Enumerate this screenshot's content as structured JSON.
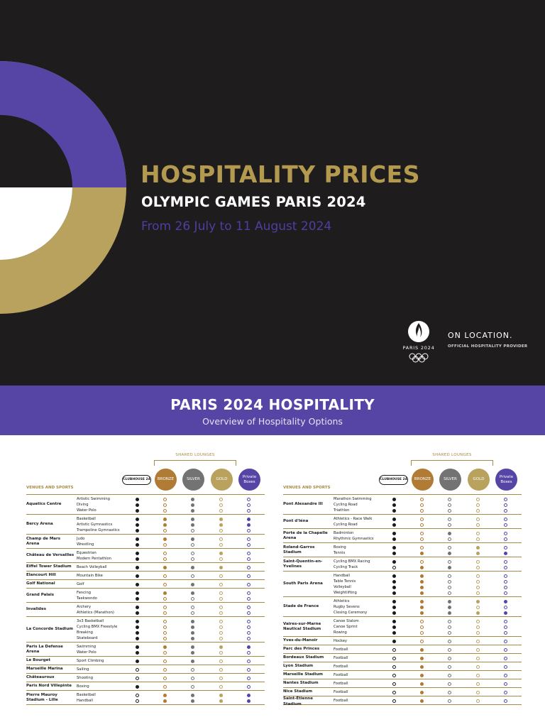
{
  "hero": {
    "title": "HOSPITALITY PRICES",
    "subtitle": "OLYMPIC GAMES PARIS 2024",
    "dates": "From 26 July to 11 August 2024",
    "logo_label": "PARIS 2024",
    "provider_name": "ON LOCATION.",
    "provider_tagline": "OFFICIAL HOSPITALITY PROVIDER"
  },
  "band": {
    "title": "PARIS 2024 HOSPITALITY",
    "subtitle": "Overview of Hospitality Options"
  },
  "table_header": {
    "shared_lounges": "SHARED LOUNGES",
    "venues_and_sports": "VENUES AND SPORTS",
    "clubhouse": "CLUBHOUSE 24",
    "bronze": "BRONZE",
    "silver": "SILVER",
    "gold": "GOLD",
    "private_boxes": "Private Boxes"
  },
  "colors": {
    "black": "#1c1a1b",
    "bronze": "#b07b35",
    "silver": "#737374",
    "gold": "#b8a25e",
    "purple": "#5745a6",
    "rule": "#a58b46"
  },
  "legend_codes": {
    "K": "black filled dot",
    "k": "black outline dot",
    "B": "bronze filled dot",
    "b": "bronze outline dot",
    "S": "silver filled dot",
    "s": "silver outline dot",
    "G": "gold filled dot",
    "g": "gold outline dot",
    "P": "purple filled dot",
    "p": "purple outline dot"
  },
  "left_rows": [
    {
      "venue": "Aquatics Centre",
      "lines": [
        [
          "Artistic Swimming",
          "KbSgp"
        ],
        [
          "Diving",
          "KbSgp"
        ],
        [
          "Water Polo",
          "KbSgp"
        ]
      ]
    },
    {
      "venue": "Bercy Arena",
      "lines": [
        [
          "Basketball",
          "KBSGP"
        ],
        [
          "Artistic Gymnastics",
          "KBSGP"
        ],
        [
          "Trampoline Gymnastics",
          "Kbsgp"
        ]
      ]
    },
    {
      "venue": "Champ de Mars Arena",
      "lines": [
        [
          "Judo",
          "KBSgp"
        ],
        [
          "Wrestling",
          "Kbsgp"
        ]
      ]
    },
    {
      "venue": "Château de Versailles",
      "lines": [
        [
          "Equestrian",
          "KbsGp"
        ],
        [
          "Modern Pentathlon",
          "Kbsgp"
        ]
      ]
    },
    {
      "venue": "Eiffel Tower Stadium",
      "lines": [
        [
          "Beach Volleyball",
          "KBSGp"
        ]
      ]
    },
    {
      "venue": "Elancourt Hill",
      "lines": [
        [
          "Mountain Bike",
          "Kbsgp"
        ]
      ]
    },
    {
      "venue": "Golf National",
      "lines": [
        [
          "Golf",
          "KbSgp"
        ]
      ]
    },
    {
      "venue": "Grand Palais",
      "lines": [
        [
          "Fencing",
          "KBSgp"
        ],
        [
          "Taekwondo",
          "Kbsgp"
        ]
      ]
    },
    {
      "venue": "Invalides",
      "lines": [
        [
          "Archery",
          "Kbsgp"
        ],
        [
          "Athletics (Marathon)",
          "Kbsgp"
        ]
      ]
    },
    {
      "venue": "La Concorde Stadium",
      "lines": [
        [
          "3x3 Basketball",
          "KbSgp"
        ],
        [
          "Cycling BMX Freestyle",
          "KbSgp"
        ],
        [
          "Breaking",
          "KbSgp"
        ],
        [
          "Skateboard",
          "KbSgp"
        ]
      ]
    },
    {
      "venue": "Paris La Defense Arena",
      "lines": [
        [
          "Swimming",
          "KBSGP"
        ],
        [
          "Water Polo",
          "KbSgp"
        ]
      ]
    },
    {
      "venue": "Le Bourget",
      "lines": [
        [
          "Sport Climbing",
          "KbSgp"
        ]
      ]
    },
    {
      "venue": "Marseille Marina",
      "lines": [
        [
          "Sailing",
          "kbsgp"
        ]
      ]
    },
    {
      "venue": "Châteauroux",
      "lines": [
        [
          "Shooting",
          "kbsgp"
        ]
      ]
    },
    {
      "venue": "Paris Nord Villepinte",
      "lines": [
        [
          "Boxing",
          "Kbsgp"
        ]
      ]
    },
    {
      "venue": "Pierre Mauroy Stadium - Lille",
      "lines": [
        [
          "Basketball",
          "kBSGP"
        ],
        [
          "Handball",
          "kBSGP"
        ]
      ]
    }
  ],
  "right_rows": [
    {
      "venue": "Pont Alexandre III",
      "lines": [
        [
          "Marathon Swimming",
          "Kbsgp"
        ],
        [
          "Cycling Road",
          "Kbsgp"
        ],
        [
          "Triathlon",
          "Kbsgp"
        ]
      ]
    },
    {
      "venue": "Pont d'Iéna",
      "lines": [
        [
          "Athletics - Race Walk",
          "Kbsgp"
        ],
        [
          "Cycling Road",
          "Kbsgp"
        ]
      ]
    },
    {
      "venue": "Porte de la Chapelle Arena",
      "lines": [
        [
          "Badminton",
          "KbSgp"
        ],
        [
          "Rhythmic Gymnastics",
          "Kbsgp"
        ]
      ]
    },
    {
      "venue": "Roland-Garros Stadium",
      "lines": [
        [
          "Boxing",
          "KbsGp"
        ],
        [
          "Tennis",
          "KBSGP"
        ]
      ]
    },
    {
      "venue": "Saint-Quentin-en-Yvelines",
      "lines": [
        [
          "Cycling BMX Racing",
          "Kbsgp"
        ],
        [
          "Cycling Track",
          "kBSgp"
        ]
      ]
    },
    {
      "venue": "South Paris Arena",
      "lines": [
        [
          "Handball",
          "KBsgp"
        ],
        [
          "Table Tennis",
          "KBsgp"
        ],
        [
          "Volleyball",
          "KBsgp"
        ],
        [
          "Weightlifting",
          "KBsgp"
        ]
      ]
    },
    {
      "venue": "Stade de France",
      "lines": [
        [
          "Athletics",
          "KBSGP"
        ],
        [
          "Rugby Sevens",
          "KBSgp"
        ],
        [
          "Closing Ceremony",
          "KBSGP"
        ]
      ]
    },
    {
      "venue": "Vaires-sur-Marne Nautical Stadium",
      "lines": [
        [
          "Canoe Slalom",
          "Kbsgp"
        ],
        [
          "Canoe Sprint",
          "Kbsgp"
        ],
        [
          "Rowing",
          "Kbsgp"
        ]
      ]
    },
    {
      "venue": "Yves-du-Manoir",
      "lines": [
        [
          "Hockey",
          "Kbsgp"
        ]
      ]
    },
    {
      "venue": "Parc des Princes",
      "lines": [
        [
          "Football",
          "kBsgp"
        ]
      ]
    },
    {
      "venue": "Bordeaux Stadium",
      "lines": [
        [
          "Football",
          "kBsgp"
        ]
      ]
    },
    {
      "venue": "Lyon Stadium",
      "lines": [
        [
          "Football",
          "kBsgp"
        ]
      ]
    },
    {
      "venue": "Marseille Stadium",
      "lines": [
        [
          "Football",
          "kBsgp"
        ]
      ]
    },
    {
      "venue": "Nantes Stadium",
      "lines": [
        [
          "Football",
          "kBsgp"
        ]
      ]
    },
    {
      "venue": "Nice Stadium",
      "lines": [
        [
          "Football",
          "kBsgp"
        ]
      ]
    },
    {
      "venue": "Saint-Étienne Stadium",
      "lines": [
        [
          "Football",
          "kBsgp"
        ]
      ]
    }
  ]
}
